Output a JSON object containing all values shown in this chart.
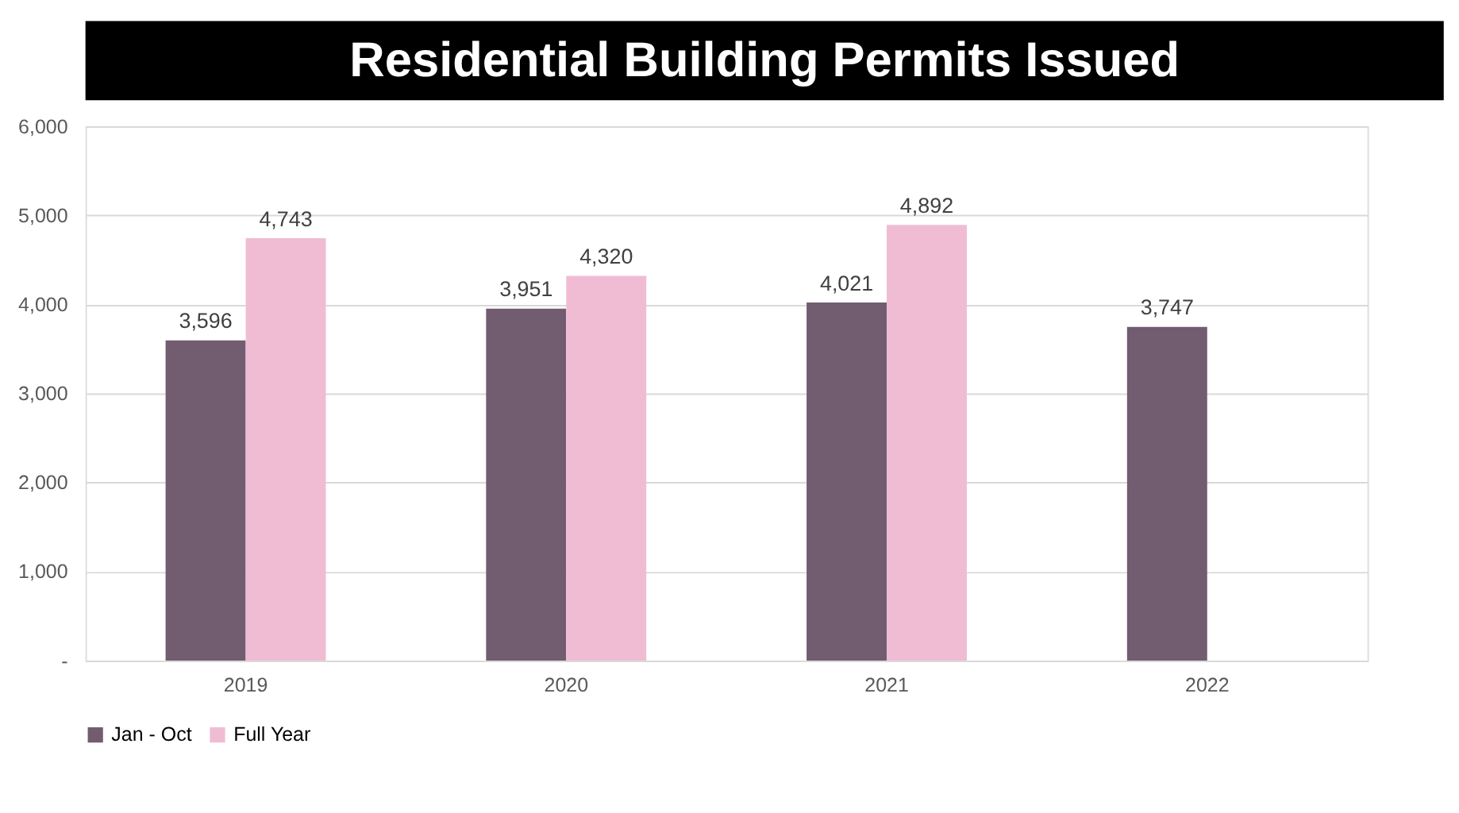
{
  "chart_data": {
    "type": "bar",
    "title": "Residential Building Permits Issued",
    "categories": [
      "2019",
      "2020",
      "2021",
      "2022"
    ],
    "series": [
      {
        "name": "Jan - Oct",
        "color": "#725c70",
        "values": [
          3596,
          3951,
          4021,
          3747
        ],
        "value_labels": [
          "3,596",
          "3,951",
          "4,021",
          "3,747"
        ]
      },
      {
        "name": "Full Year",
        "color": "#f0bcd4",
        "values": [
          4743,
          4320,
          4892,
          null
        ],
        "value_labels": [
          "4,743",
          "4,320",
          "4,892",
          null
        ]
      }
    ],
    "ylim": [
      0,
      6000
    ],
    "yticks": [
      {
        "value": 0,
        "label": "-"
      },
      {
        "value": 1000,
        "label": "1,000"
      },
      {
        "value": 2000,
        "label": "2,000"
      },
      {
        "value": 3000,
        "label": "3,000"
      },
      {
        "value": 4000,
        "label": "4,000"
      },
      {
        "value": 5000,
        "label": "5,000"
      },
      {
        "value": 6000,
        "label": "6,000"
      }
    ],
    "grid": "y",
    "legend": "bottom"
  }
}
